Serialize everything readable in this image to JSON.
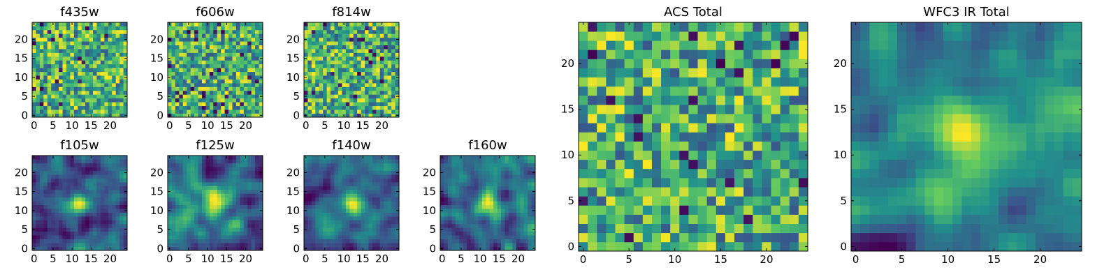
{
  "chart_data": [
    {
      "type": "heatmap",
      "title": "f435w",
      "size": 25,
      "colormap": "viridis",
      "xticks": [
        "0",
        "5",
        "10",
        "15",
        "20"
      ],
      "yticks": [
        "0",
        "5",
        "10",
        "15",
        "20"
      ],
      "xlim": [
        0,
        25
      ],
      "ylim": [
        0,
        25
      ],
      "texture": "noise",
      "seed": 11
    },
    {
      "type": "heatmap",
      "title": "f606w",
      "size": 25,
      "colormap": "viridis",
      "xticks": [
        "0",
        "5",
        "10",
        "15",
        "20"
      ],
      "yticks": [
        "0",
        "5",
        "10",
        "15",
        "20"
      ],
      "xlim": [
        0,
        25
      ],
      "ylim": [
        0,
        25
      ],
      "texture": "noise",
      "seed": 23
    },
    {
      "type": "heatmap",
      "title": "f814w",
      "size": 25,
      "colormap": "viridis",
      "xticks": [
        "0",
        "5",
        "10",
        "15",
        "20"
      ],
      "yticks": [
        "0",
        "5",
        "10",
        "15",
        "20"
      ],
      "xlim": [
        0,
        25
      ],
      "ylim": [
        0,
        25
      ],
      "texture": "noise",
      "seed": 37
    },
    {
      "type": "heatmap",
      "title": "f105w",
      "size": 25,
      "colormap": "viridis",
      "xticks": [
        "0",
        "5",
        "10",
        "15",
        "20"
      ],
      "yticks": [
        "0",
        "5",
        "10",
        "15",
        "20"
      ],
      "xlim": [
        0,
        25
      ],
      "ylim": [
        0,
        25
      ],
      "texture": "smooth",
      "seed": 41
    },
    {
      "type": "heatmap",
      "title": "f125w",
      "size": 25,
      "colormap": "viridis",
      "xticks": [
        "0",
        "5",
        "10",
        "15",
        "20"
      ],
      "yticks": [
        "0",
        "5",
        "10",
        "15",
        "20"
      ],
      "xlim": [
        0,
        25
      ],
      "ylim": [
        0,
        25
      ],
      "texture": "smooth",
      "seed": 53
    },
    {
      "type": "heatmap",
      "title": "f140w",
      "size": 25,
      "colormap": "viridis",
      "xticks": [
        "0",
        "5",
        "10",
        "15",
        "20"
      ],
      "yticks": [
        "0",
        "5",
        "10",
        "15",
        "20"
      ],
      "xlim": [
        0,
        25
      ],
      "ylim": [
        0,
        25
      ],
      "texture": "smooth",
      "seed": 67
    },
    {
      "type": "heatmap",
      "title": "f160w",
      "size": 25,
      "colormap": "viridis",
      "xticks": [
        "0",
        "5",
        "10",
        "15",
        "20"
      ],
      "yticks": [
        "0",
        "5",
        "10",
        "15",
        "20"
      ],
      "xlim": [
        0,
        25
      ],
      "ylim": [
        0,
        25
      ],
      "texture": "smooth",
      "seed": 79
    },
    {
      "type": "heatmap",
      "title": "ACS Total",
      "size": 25,
      "colormap": "viridis",
      "xticks": [
        "0",
        "5",
        "10",
        "15",
        "20"
      ],
      "yticks": [
        "0",
        "5",
        "10",
        "15",
        "20"
      ],
      "xlim": [
        0,
        25
      ],
      "ylim": [
        0,
        25
      ],
      "texture": "noise",
      "seed": 83
    },
    {
      "type": "heatmap",
      "title": "WFC3 IR Total",
      "size": 25,
      "colormap": "viridis",
      "xticks": [
        "0",
        "5",
        "10",
        "15",
        "20"
      ],
      "yticks": [
        "0",
        "5",
        "10",
        "15",
        "20"
      ],
      "xlim": [
        0,
        25
      ],
      "ylim": [
        0,
        25
      ],
      "texture": "smooth",
      "seed": 97
    }
  ],
  "colors": {
    "viridis_stops": [
      "#440154",
      "#3b528b",
      "#21918c",
      "#5ec962",
      "#fde725"
    ]
  }
}
